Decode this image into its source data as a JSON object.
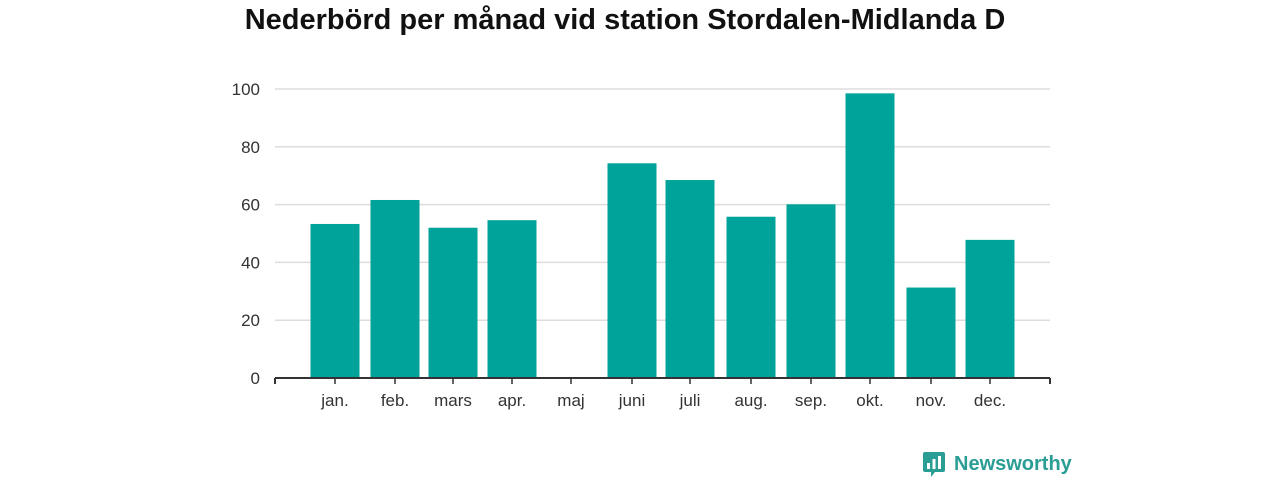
{
  "chart_data": {
    "type": "bar",
    "title": "Nederbörd per månad vid station Stordalen-Midlanda D",
    "xlabel": "",
    "ylabel": "",
    "categories": [
      "jan.",
      "feb.",
      "mars",
      "apr.",
      "maj",
      "juni",
      "juli",
      "aug.",
      "sep.",
      "okt.",
      "nov.",
      "dec."
    ],
    "values": [
      53.3,
      61.6,
      52.0,
      54.6,
      null,
      74.3,
      68.5,
      55.8,
      60.1,
      98.5,
      31.3,
      47.8
    ],
    "ylim": [
      0,
      100
    ],
    "yticks": [
      0,
      20,
      40,
      60,
      80,
      100
    ],
    "grid": true,
    "legend": "none",
    "bar_color": "#00a39a"
  },
  "branding": {
    "name": "Newsworthy",
    "color": "#2a9d94"
  }
}
